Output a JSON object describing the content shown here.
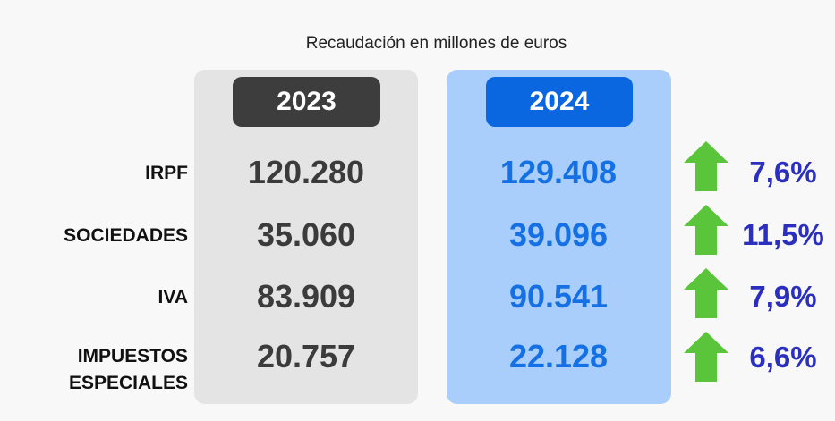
{
  "chart_data": {
    "type": "table",
    "title": "Recaudación en millones de euros",
    "columns": [
      "2023",
      "2024"
    ],
    "rows": [
      {
        "label": "IRPF",
        "v2023": "120.280",
        "v2024": "129.408",
        "change": "7,6%",
        "trend": "up"
      },
      {
        "label": "SOCIEDADES",
        "v2023": "35.060",
        "v2024": "39.096",
        "change": "11,5%",
        "trend": "up"
      },
      {
        "label": "IVA",
        "v2023": "83.909",
        "v2024": "90.541",
        "change": "7,9%",
        "trend": "up"
      },
      {
        "label": "IMPUESTOS ESPECIALES",
        "v2023": "20.757",
        "v2024": "22.128",
        "change": "6,6%",
        "trend": "up"
      }
    ]
  },
  "colors": {
    "col_2023_panel": "#e5e4e4",
    "col_2023_header": "#3d3d3d",
    "col_2024_panel": "#a9cefc",
    "col_2024_header": "#0b67df",
    "value_2024": "#1570e3",
    "arrow": "#5ac53a",
    "percent": "#2b2fc0"
  },
  "icons": {
    "trend_up": "green-up-arrow-icon"
  }
}
